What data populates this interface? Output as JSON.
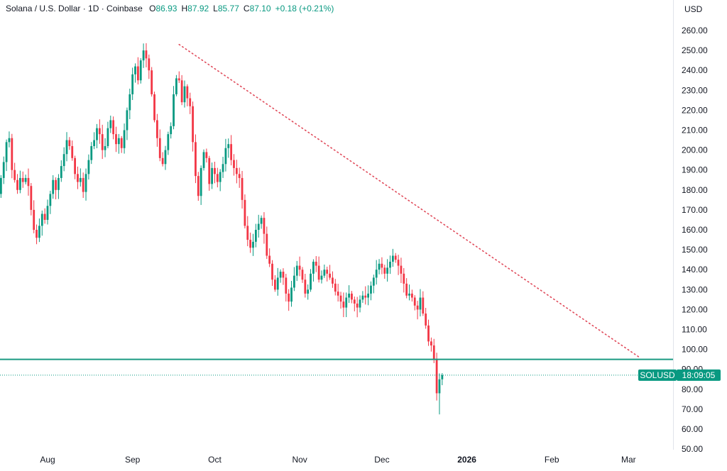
{
  "legend": {
    "symbol": "Solana / U.S. Dollar · 1D · Coinbase",
    "open_label": "O",
    "open": "86.93",
    "high_label": "H",
    "high": "87.92",
    "low_label": "L",
    "low": "85.77",
    "close_label": "C",
    "close": "87.10",
    "change": "+0.18 (+0.21%)"
  },
  "currency": "USD",
  "price_badge": {
    "symbol": "SOLUSD",
    "countdown": "18:09:05"
  },
  "colors": {
    "up": "#089981",
    "down": "#f23645",
    "trendline": "#e04a5a",
    "support": "#1a9a82"
  },
  "chart_data": {
    "type": "candlestick",
    "symbol": "SOLUSD",
    "interval": "1D",
    "y_ticks": [
      "260.00",
      "250.00",
      "240.00",
      "230.00",
      "220.00",
      "210.00",
      "200.00",
      "190.00",
      "180.00",
      "170.00",
      "160.00",
      "150.00",
      "140.00",
      "130.00",
      "120.00",
      "110.00",
      "100.00",
      "90.00",
      "80.00",
      "70.00",
      "60.00",
      "50.00"
    ],
    "ylim": [
      50,
      263
    ],
    "x_labels": [
      "Aug",
      "Sep",
      "Oct",
      "Nov",
      "Dec",
      "2026",
      "Feb",
      "Mar"
    ],
    "x_label_dates": [
      "2025-08-01",
      "2025-09-01",
      "2025-10-01",
      "2025-11-01",
      "2025-12-01",
      "2026-01-01",
      "2026-02-01",
      "2026-03-01"
    ],
    "start_date": "2025-07-13",
    "close": [
      170,
      178,
      186,
      194,
      204,
      206,
      190,
      185,
      180,
      186,
      184,
      186,
      182,
      170,
      160,
      156,
      162,
      168,
      165,
      172,
      178,
      185,
      180,
      186,
      192,
      198,
      205,
      202,
      196,
      188,
      184,
      186,
      179,
      188,
      195,
      202,
      205,
      211,
      208,
      200,
      202,
      211,
      215,
      208,
      203,
      206,
      201,
      210,
      220,
      228,
      238,
      242,
      235,
      245,
      250,
      246,
      240,
      228,
      215,
      206,
      196,
      193,
      200,
      208,
      212,
      228,
      236,
      235,
      224,
      232,
      226,
      222,
      204,
      187,
      177,
      191,
      199,
      196,
      183,
      191,
      188,
      184,
      189,
      193,
      201,
      203,
      195,
      191,
      188,
      186,
      175,
      162,
      155,
      151,
      154,
      160,
      163,
      166,
      158,
      147,
      143,
      135,
      130,
      136,
      139,
      136,
      128,
      124,
      131,
      137,
      142,
      140,
      135,
      128,
      130,
      138,
      144,
      142,
      135,
      137,
      140,
      138,
      136,
      133,
      129,
      127,
      124,
      121,
      126,
      128,
      125,
      123,
      121,
      125,
      127,
      126,
      128,
      132,
      136,
      140,
      143,
      141,
      138,
      141,
      144,
      147,
      145,
      142,
      138,
      133,
      127,
      128,
      126,
      122,
      120,
      126,
      118,
      112,
      104,
      102,
      95,
      78,
      85,
      87.1
    ],
    "high": 253.5,
    "low": 67.4,
    "trendline": {
      "from": [
        "2025-09-18",
        253
      ],
      "to": [
        "2026-03-05",
        96
      ],
      "style": "dotted"
    },
    "support_line": 95,
    "current_price": 87.1,
    "grid": false
  }
}
